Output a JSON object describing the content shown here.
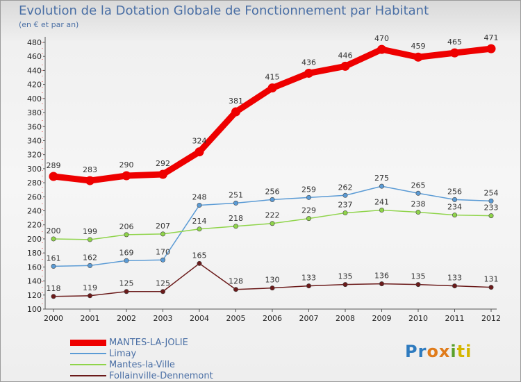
{
  "chart_data": {
    "type": "line",
    "title": "Evolution de la Dotation Globale de Fonctionnement par Habitant",
    "subtitle": "(en € et par an)",
    "x": [
      "2000",
      "2001",
      "2002",
      "2003",
      "2004",
      "2005",
      "2006",
      "2007",
      "2008",
      "2009",
      "2010",
      "2011",
      "2012"
    ],
    "ylim": [
      100,
      480
    ],
    "yticks": [
      100,
      120,
      140,
      160,
      180,
      200,
      220,
      240,
      260,
      280,
      300,
      320,
      340,
      360,
      380,
      400,
      420,
      440,
      460,
      480
    ],
    "grid": false,
    "legend_position": "bottom-left",
    "series": [
      {
        "name": "MANTES-LA-JOLIE",
        "color": "#ee0000",
        "values": [
          289,
          283,
          290,
          292,
          324,
          381,
          415,
          436,
          446,
          470,
          459,
          465,
          471
        ]
      },
      {
        "name": "Limay",
        "color": "#5b9bd5",
        "values": [
          161,
          162,
          169,
          170,
          248,
          251,
          256,
          259,
          262,
          275,
          265,
          256,
          254
        ]
      },
      {
        "name": "Mantes-la-Ville",
        "color": "#8fd44a",
        "values": [
          200,
          199,
          206,
          207,
          214,
          218,
          222,
          229,
          237,
          241,
          238,
          234,
          233
        ]
      },
      {
        "name": "Follainville-Dennemont",
        "color": "#6b1a1a",
        "values": [
          118,
          119,
          125,
          125,
          165,
          128,
          130,
          133,
          135,
          136,
          135,
          133,
          131
        ]
      }
    ]
  },
  "logo": {
    "p1": "Pr",
    "p2": "ox",
    "p3": "i",
    "p4": "ti"
  }
}
